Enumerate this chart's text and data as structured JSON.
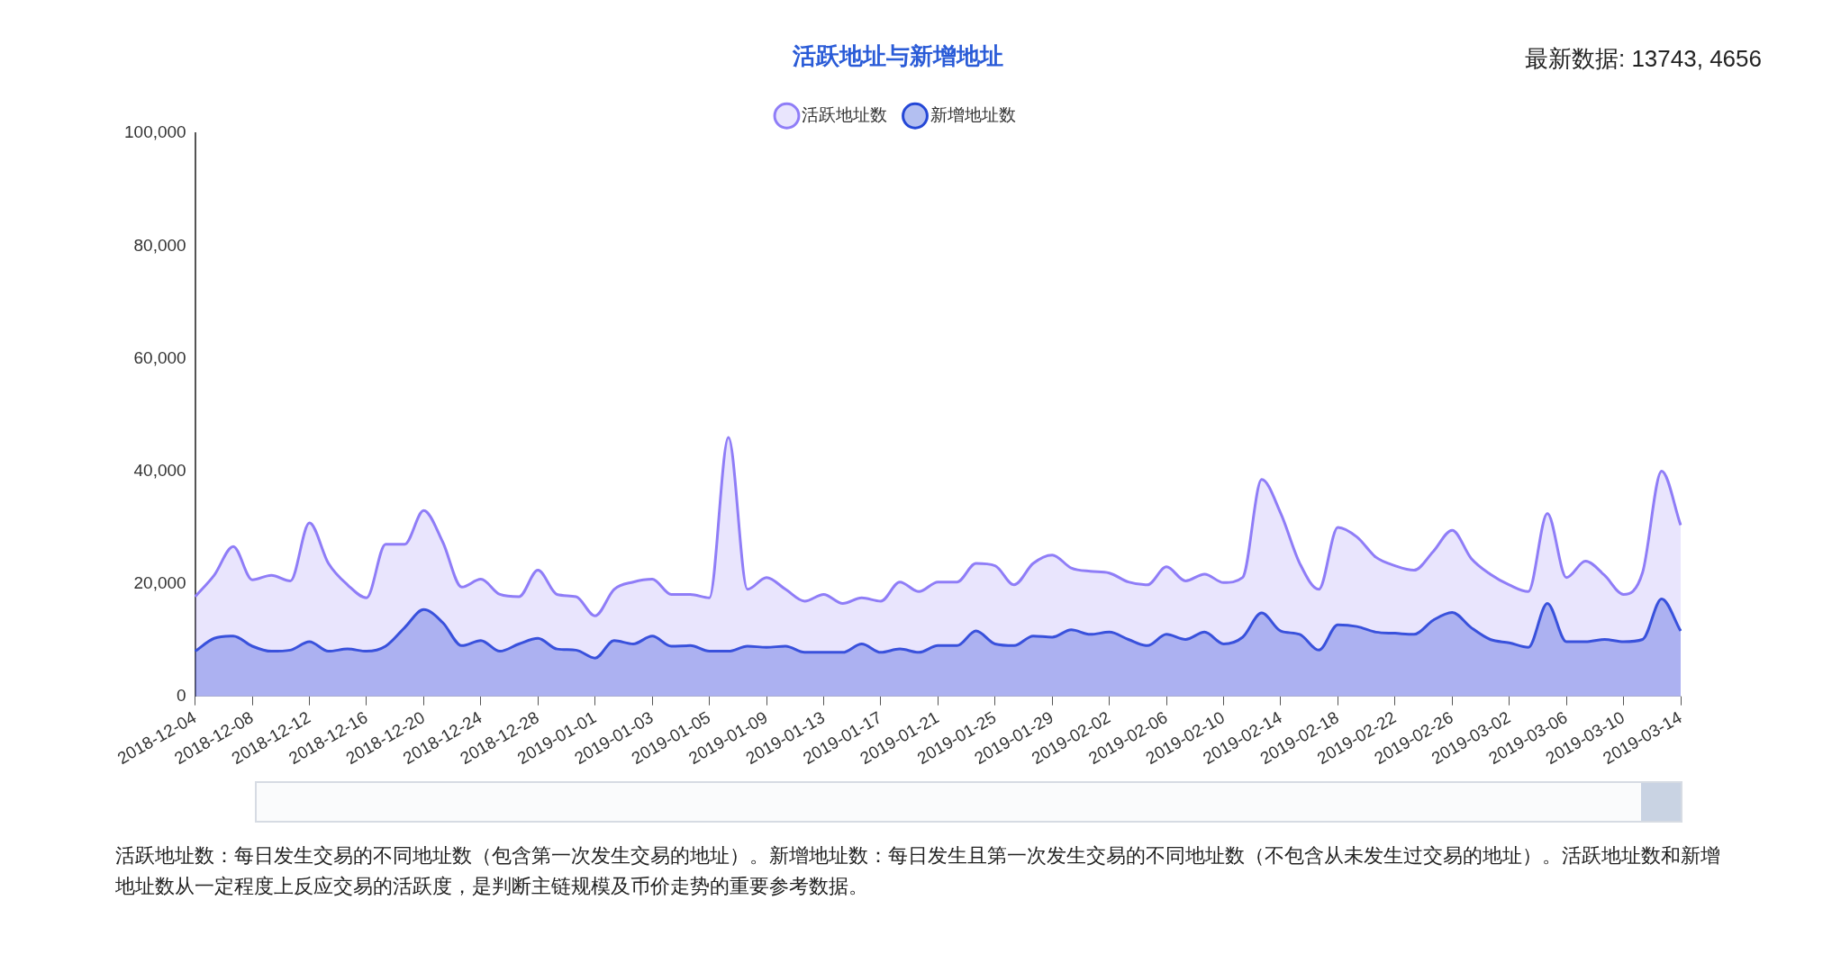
{
  "chart_data": {
    "type": "area",
    "title": "活跃地址与新增地址",
    "categories": [
      "2018-12-04",
      null,
      null,
      "2018-12-08",
      null,
      null,
      "2018-12-12",
      null,
      null,
      "2018-12-16",
      null,
      null,
      "2018-12-20",
      null,
      null,
      "2018-12-24",
      null,
      null,
      "2018-12-28",
      null,
      null,
      "2019-01-01",
      null,
      null,
      "2019-01-03",
      null,
      null,
      "2019-01-05",
      null,
      null,
      "2019-01-09",
      null,
      null,
      "2019-01-13",
      null,
      null,
      "2019-01-17",
      null,
      null,
      "2019-01-21",
      null,
      null,
      "2019-01-25",
      null,
      null,
      "2019-01-29",
      null,
      null,
      "2019-02-02",
      null,
      null,
      "2019-02-06",
      null,
      null,
      "2019-02-10",
      null,
      null,
      "2019-02-14",
      null,
      null,
      "2019-02-18",
      null,
      null,
      "2019-02-22",
      null,
      null,
      "2019-02-26",
      null,
      null,
      "2019-03-02",
      null,
      null,
      "2019-03-06",
      null,
      null,
      "2019-03-10",
      null,
      null,
      "2019-03-14"
    ],
    "series": [
      {
        "name": "活跃地址数",
        "color": "#8f7df7",
        "values": [
          17700,
          21500,
          26600,
          20700,
          21500,
          20500,
          30800,
          23600,
          19800,
          17500,
          27000,
          27000,
          33000,
          27400,
          19400,
          20800,
          18100,
          17700,
          22400,
          18100,
          17700,
          14300,
          19000,
          20300,
          20800,
          18100,
          18100,
          17500,
          46000,
          19000,
          21100,
          19000,
          16900,
          18100,
          16500,
          17500,
          16900,
          20300,
          18600,
          20300,
          20300,
          23600,
          23200,
          19800,
          23600,
          25100,
          22800,
          22200,
          21900,
          20300,
          19800,
          23000,
          20500,
          21700,
          20200,
          21100,
          38500,
          32500,
          23600,
          19000,
          30000,
          28300,
          24700,
          23200,
          22400,
          25700,
          29500,
          24500,
          21700,
          19800,
          18600,
          32500,
          21100,
          24000,
          21500,
          18100,
          22000,
          40000,
          30400
        ]
      },
      {
        "name": "新增地址数",
        "color": "#2447d6",
        "values": [
          8000,
          10300,
          10700,
          8900,
          8000,
          8200,
          9700,
          8000,
          8400,
          8000,
          8900,
          12200,
          15400,
          13100,
          9000,
          9900,
          8000,
          9300,
          10300,
          8400,
          8200,
          6800,
          9900,
          9300,
          10700,
          8900,
          9000,
          8000,
          8000,
          8900,
          8700,
          8900,
          7800,
          7800,
          7800,
          9300,
          7800,
          8400,
          7800,
          9000,
          9000,
          11600,
          9300,
          9000,
          10700,
          10500,
          11800,
          11000,
          11400,
          10100,
          9000,
          11000,
          10100,
          11400,
          9300,
          10500,
          14800,
          11600,
          11000,
          8200,
          12700,
          12400,
          11400,
          11200,
          11000,
          13500,
          14900,
          12200,
          10100,
          9500,
          8700,
          16500,
          9700,
          9700,
          10100,
          9700,
          10100,
          17300,
          11600
        ]
      }
    ],
    "ylim": [
      0,
      100000
    ],
    "yticks": [
      {
        "value": 0,
        "label": "0"
      },
      {
        "value": 20000,
        "label": "20,000"
      },
      {
        "value": 40000,
        "label": "40,000"
      },
      {
        "value": 60000,
        "label": "60,000"
      },
      {
        "value": 80000,
        "label": "80,000"
      },
      {
        "value": 100000,
        "label": "100,000"
      }
    ],
    "legend": "top",
    "annotations": [
      "最新数据: 13743, 4656",
      "活跃地址数：每日发生交易的不同地址数（包含第一次发生交易的地址）。新增地址数：每日发生且第一次发生交易的不同地址数（不包含从未发生过交易的地址）。活跃地址数和新增地址数从一定程度上反应交易的活跃度，是判断主链规模及币价走势的重要参考数据。"
    ]
  }
}
